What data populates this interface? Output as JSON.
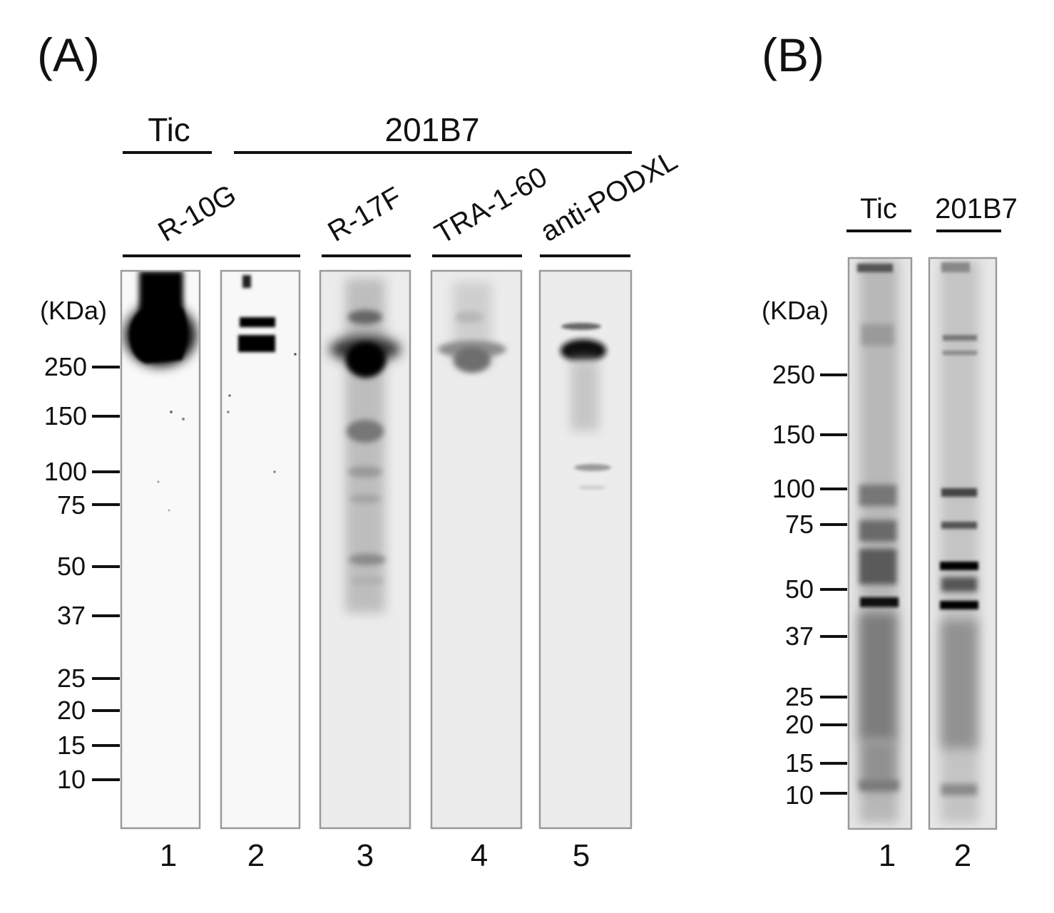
{
  "panel_a": {
    "panel_label": "(A)",
    "groups": [
      "Tic",
      "201B7"
    ],
    "antibodies": [
      "R-10G",
      "R-17F",
      "TRA-1-60",
      "anti-PODXL"
    ],
    "unit_label": "(KDa)",
    "markers": [
      "250",
      "150",
      "100",
      "75",
      "50",
      "37",
      "25",
      "20",
      "15",
      "10"
    ],
    "lanes": [
      "1",
      "2",
      "3",
      "4",
      "5"
    ]
  },
  "panel_b": {
    "panel_label": "(B)",
    "groups": [
      "Tic",
      "201B7"
    ],
    "unit_label": "(KDa)",
    "markers": [
      "250",
      "150",
      "100",
      "75",
      "50",
      "37",
      "25",
      "20",
      "15",
      "10"
    ],
    "lanes": [
      "1",
      "2"
    ]
  }
}
